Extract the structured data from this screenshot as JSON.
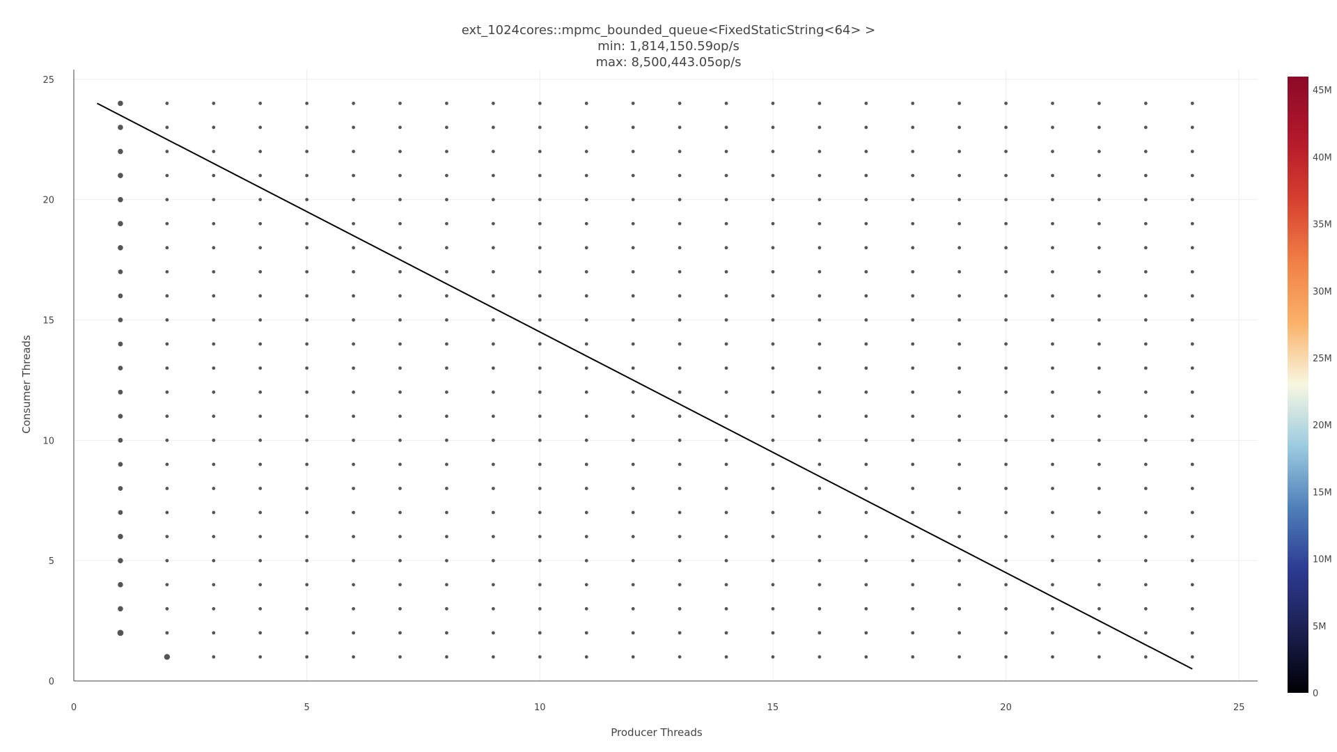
{
  "chart_data": {
    "type": "scatter",
    "title": "ext_1024cores::mpmc_bounded_queue<FixedStaticString<64> >",
    "subtitle_min": "min: 1,814,150.59op/s",
    "subtitle_max": "max: 8,500,443.05op/s",
    "xlabel": "Producer Threads",
    "ylabel": "Consumer Threads",
    "xlim": [
      0,
      25.4
    ],
    "ylim": [
      0,
      25.4
    ],
    "x_ticks": [
      0,
      5,
      10,
      15,
      20,
      25
    ],
    "y_ticks": [
      0,
      5,
      10,
      15,
      20,
      25
    ],
    "grid": true,
    "x": [
      1,
      2,
      3,
      4,
      5,
      6,
      7,
      8,
      9,
      10,
      11,
      12,
      13,
      14,
      15,
      16,
      17,
      18,
      19,
      20,
      21,
      22,
      23,
      24
    ],
    "y": [
      1,
      2,
      3,
      4,
      5,
      6,
      7,
      8,
      9,
      10,
      11,
      12,
      13,
      14,
      15,
      16,
      17,
      18,
      19,
      20,
      21,
      22,
      23,
      24
    ],
    "grid_pattern": "all producer/consumer combinations from 1 to 24 except (1,1)",
    "marker_color": "#555555",
    "reference_line": {
      "x": [
        0.5,
        24
      ],
      "y": [
        24,
        0.5
      ],
      "color": "#000000"
    },
    "colorbar": {
      "min": 0,
      "max": 46,
      "ticks": [
        "0",
        "5M",
        "10M",
        "15M",
        "20M",
        "25M",
        "30M",
        "35M",
        "40M",
        "45M"
      ],
      "tick_values": [
        0,
        5,
        10,
        15,
        20,
        25,
        30,
        35,
        40,
        45
      ],
      "colors": [
        "#000004",
        "#1b1f4f",
        "#2c3b92",
        "#4f7fb9",
        "#9ccbe0",
        "#f7f7e1",
        "#fbb26a",
        "#f07f46",
        "#d6402f",
        "#b2182b",
        "#8b0a28"
      ]
    }
  }
}
